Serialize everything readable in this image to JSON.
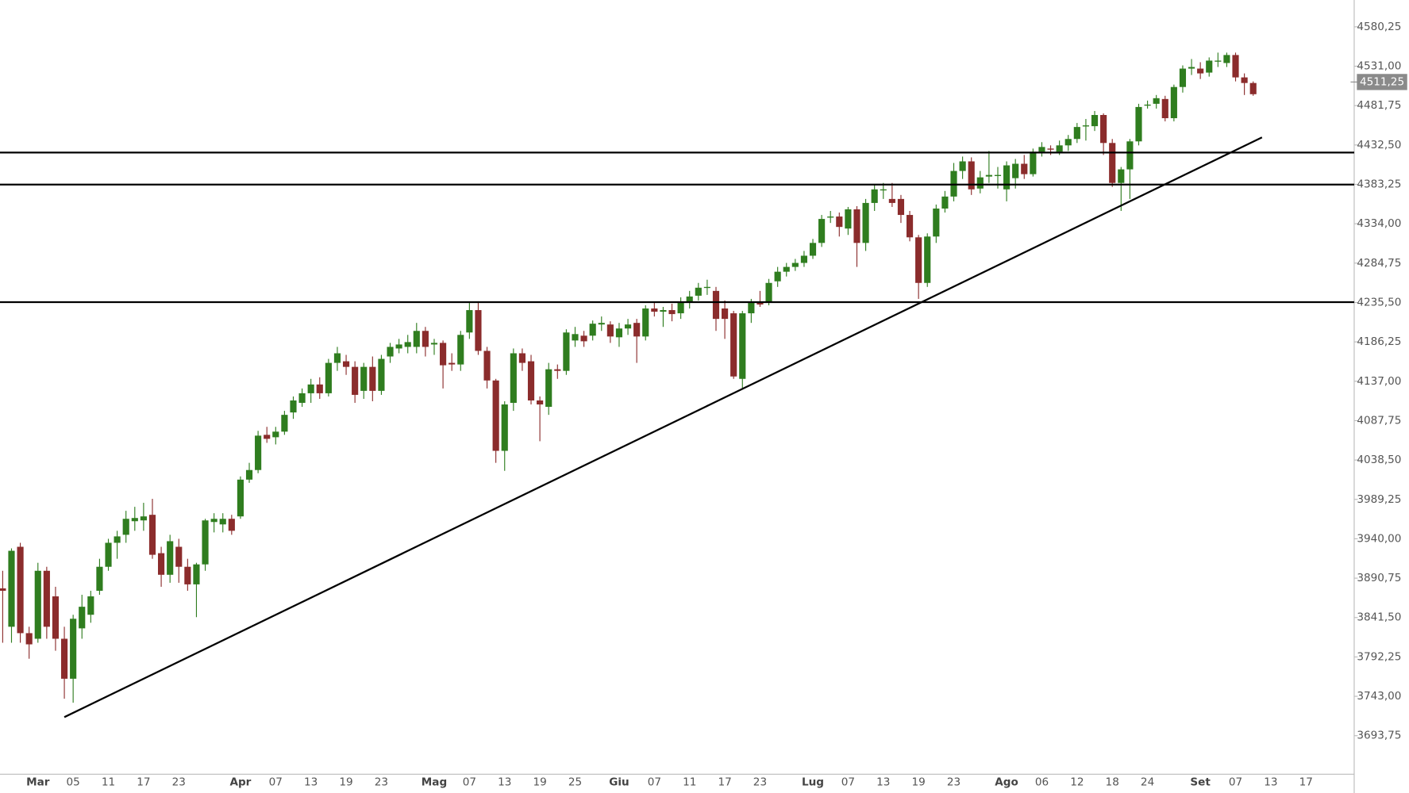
{
  "chart_data": {
    "type": "candlestick",
    "up_color": "#2f7d1f",
    "down_color": "#8b2c2c",
    "line_color": "#000000",
    "grid": false,
    "categories": [
      null,
      null,
      null,
      null,
      "Mar",
      null,
      null,
      null,
      "05",
      null,
      null,
      null,
      "11",
      null,
      null,
      null,
      "17",
      null,
      null,
      null,
      "23",
      null,
      null,
      null,
      null,
      null,
      null,
      "Apr",
      null,
      null,
      null,
      "07",
      null,
      null,
      null,
      "13",
      null,
      null,
      null,
      "19",
      null,
      null,
      null,
      "23",
      null,
      null,
      null,
      null,
      null,
      "Mag",
      null,
      null,
      null,
      "07",
      null,
      null,
      null,
      "13",
      null,
      null,
      null,
      "19",
      null,
      null,
      null,
      "25",
      null,
      null,
      null,
      null,
      "Giu",
      null,
      null,
      null,
      "07",
      null,
      null,
      null,
      "11",
      null,
      null,
      null,
      "17",
      null,
      null,
      null,
      "23",
      null,
      null,
      null,
      null,
      null,
      "Lug",
      null,
      null,
      null,
      "07",
      null,
      null,
      null,
      "13",
      null,
      null,
      null,
      "19",
      null,
      null,
      null,
      "23",
      null,
      null,
      null,
      null,
      null,
      "Ago",
      null,
      null,
      null,
      "06",
      null,
      null,
      null,
      "12",
      null,
      null,
      null,
      "18",
      null,
      null,
      null,
      "24",
      null,
      null,
      null,
      null,
      null,
      "Set",
      null,
      null,
      null,
      "07",
      null,
      null,
      null,
      "13",
      null,
      null,
      null,
      "17"
    ],
    "open": [
      3878,
      3830,
      3930,
      3822,
      3815,
      3900,
      3868,
      3815,
      3765,
      3828,
      3845,
      3875,
      3905,
      3935,
      3945,
      3962,
      3963,
      3970,
      3922,
      3895,
      3930,
      3905,
      3883,
      3908,
      3961,
      3958,
      3965,
      3968,
      4014,
      4026,
      4070,
      4067,
      4074,
      4098,
      4110,
      4122,
      4133,
      4122,
      4160,
      4162,
      4155,
      4125,
      4155,
      4125,
      4168,
      4178,
      4180,
      4180,
      4200,
      4183,
      4185,
      4160,
      4158,
      4198,
      4226,
      4175,
      4138,
      4050,
      4110,
      4172,
      4162,
      4113,
      4105,
      4152,
      4150,
      4188,
      4194,
      4194,
      4208,
      4208,
      4192,
      4203,
      4210,
      4193,
      4228,
      4224,
      4226,
      4222,
      4236,
      4244,
      4254,
      4250,
      4228,
      4222,
      4140,
      4222,
      4236,
      4236,
      4262,
      4274,
      4280,
      4285,
      4294,
      4310,
      4342,
      4343,
      4328,
      4352,
      4310,
      4360,
      4376,
      4365,
      4365,
      4345,
      4317,
      4260,
      4318,
      4353,
      4368,
      4400,
      4412,
      4378,
      4393,
      4394,
      4377,
      4391,
      4409,
      4396,
      4424,
      4428,
      4424,
      4432,
      4440,
      4456,
      4456,
      4470,
      4435,
      4385,
      4402,
      4437,
      4482,
      4484,
      4490,
      4466,
      4505,
      4528,
      4528,
      4523,
      4537,
      4535,
      4545,
      4517,
      4510,
      null,
      null,
      null,
      null,
      null,
      null
    ],
    "high": [
      3900,
      3928,
      3935,
      3830,
      3910,
      3905,
      3880,
      3830,
      3845,
      3870,
      3875,
      3915,
      3940,
      3950,
      3975,
      3980,
      3985,
      3990,
      3930,
      3945,
      3940,
      3915,
      3910,
      3965,
      3972,
      3972,
      3970,
      4018,
      4035,
      4075,
      4080,
      4080,
      4100,
      4118,
      4128,
      4140,
      4142,
      4165,
      4180,
      4170,
      4162,
      4160,
      4168,
      4170,
      4185,
      4190,
      4195,
      4210,
      4205,
      4190,
      4188,
      4172,
      4200,
      4235,
      4237,
      4180,
      4140,
      4112,
      4178,
      4178,
      4170,
      4118,
      4160,
      4158,
      4202,
      4205,
      4200,
      4213,
      4218,
      4212,
      4210,
      4215,
      4215,
      4232,
      4235,
      4230,
      4234,
      4242,
      4250,
      4260,
      4264,
      4255,
      4238,
      4225,
      4225,
      4240,
      4250,
      4265,
      4280,
      4285,
      4290,
      4300,
      4315,
      4345,
      4350,
      4348,
      4355,
      4356,
      4365,
      4383,
      4385,
      4385,
      4370,
      4350,
      4320,
      4322,
      4358,
      4375,
      4410,
      4418,
      4417,
      4400,
      4425,
      4405,
      4412,
      4415,
      4420,
      4428,
      4436,
      4432,
      4438,
      4445,
      4460,
      4465,
      4475,
      4472,
      4440,
      4405,
      4440,
      4484,
      4488,
      4495,
      4494,
      4508,
      4532,
      4540,
      4536,
      4542,
      4548,
      4548,
      4548,
      4522,
      4512,
      null,
      null,
      null,
      null,
      null,
      null
    ],
    "low": [
      3810,
      3810,
      3810,
      3790,
      3810,
      3815,
      3800,
      3740,
      3735,
      3815,
      3835,
      3870,
      3900,
      3915,
      3935,
      3950,
      3950,
      3915,
      3880,
      3885,
      3885,
      3875,
      3842,
      3900,
      3948,
      3948,
      3945,
      3965,
      4010,
      4022,
      4060,
      4058,
      4070,
      4090,
      4105,
      4110,
      4115,
      4118,
      4150,
      4145,
      4110,
      4115,
      4112,
      4120,
      4160,
      4172,
      4172,
      4172,
      4168,
      4170,
      4128,
      4150,
      4150,
      4190,
      4170,
      4128,
      4035,
      4025,
      4100,
      4150,
      4108,
      4062,
      4095,
      4140,
      4145,
      4180,
      4180,
      4188,
      4200,
      4185,
      4180,
      4195,
      4160,
      4188,
      4218,
      4205,
      4212,
      4215,
      4228,
      4238,
      4245,
      4200,
      4190,
      4140,
      4128,
      4210,
      4230,
      4232,
      4255,
      4268,
      4275,
      4280,
      4290,
      4305,
      4335,
      4318,
      4320,
      4280,
      4300,
      4350,
      4365,
      4355,
      4335,
      4312,
      4240,
      4255,
      4310,
      4348,
      4362,
      4390,
      4370,
      4372,
      4385,
      4378,
      4362,
      4378,
      4390,
      4393,
      4418,
      4420,
      4420,
      4425,
      4435,
      4438,
      4450,
      4420,
      4380,
      4350,
      4365,
      4432,
      4478,
      4478,
      4462,
      4462,
      4498,
      4520,
      4515,
      4518,
      4530,
      4530,
      4512,
      4495,
      4494,
      null,
      null,
      null,
      null,
      null,
      null
    ],
    "close": [
      3875,
      3925,
      3822,
      3808,
      3900,
      3830,
      3815,
      3765,
      3840,
      3855,
      3868,
      3905,
      3935,
      3943,
      3965,
      3966,
      3968,
      3920,
      3895,
      3937,
      3905,
      3883,
      3908,
      3963,
      3965,
      3965,
      3950,
      4014,
      4026,
      4069,
      4065,
      4074,
      4095,
      4113,
      4122,
      4133,
      4122,
      4160,
      4172,
      4155,
      4120,
      4155,
      4125,
      4165,
      4180,
      4183,
      4186,
      4200,
      4180,
      4185,
      4157,
      4158,
      4195,
      4226,
      4175,
      4138,
      4050,
      4108,
      4172,
      4160,
      4113,
      4108,
      4152,
      4150,
      4198,
      4196,
      4187,
      4209,
      4210,
      4193,
      4203,
      4208,
      4193,
      4228,
      4224,
      4226,
      4221,
      4236,
      4243,
      4254,
      4255,
      4215,
      4215,
      4143,
      4222,
      4236,
      4233,
      4260,
      4274,
      4280,
      4285,
      4294,
      4310,
      4340,
      4343,
      4330,
      4352,
      4310,
      4360,
      4377,
      4377,
      4360,
      4345,
      4317,
      4260,
      4318,
      4353,
      4368,
      4400,
      4412,
      4377,
      4392,
      4395,
      4395,
      4407,
      4409,
      4396,
      4424,
      4430,
      4427,
      4432,
      4440,
      4455,
      4457,
      4470,
      4435,
      4385,
      4402,
      4437,
      4480,
      4483,
      4491,
      4466,
      4505,
      4528,
      4530,
      4522,
      4538,
      4538,
      4545,
      4517,
      4510,
      4496,
      null,
      null,
      null,
      null,
      null,
      null
    ],
    "ylim": [
      3645.6,
      4613.8
    ],
    "yticks": [
      {
        "value": 4580.25,
        "label": "4580,25"
      },
      {
        "value": 4531,
        "label": "4531,00"
      },
      {
        "value": 4481.75,
        "label": "4481,75"
      },
      {
        "value": 4432.5,
        "label": "4432,50"
      },
      {
        "value": 4383.25,
        "label": "4383,25"
      },
      {
        "value": 4334,
        "label": "4334,00"
      },
      {
        "value": 4284.75,
        "label": "4284,75"
      },
      {
        "value": 4235.5,
        "label": "4235,50"
      },
      {
        "value": 4186.25,
        "label": "4186,25"
      },
      {
        "value": 4137,
        "label": "4137,00"
      },
      {
        "value": 4087.75,
        "label": "4087,75"
      },
      {
        "value": 4038.5,
        "label": "4038,50"
      },
      {
        "value": 3989.25,
        "label": "3989,25"
      },
      {
        "value": 3940,
        "label": "3940,00"
      },
      {
        "value": 3890.75,
        "label": "3890,75"
      },
      {
        "value": 3841.5,
        "label": "3841,50"
      },
      {
        "value": 3792.25,
        "label": "3792,25"
      },
      {
        "value": 3743,
        "label": "3743,00"
      },
      {
        "value": 3693.75,
        "label": "3693,75"
      }
    ],
    "last_price": {
      "value": 4511.25,
      "label": "4511,25"
    },
    "levels": [
      4423,
      4383,
      4236
    ],
    "trendline": {
      "x": [
        7,
        143
      ],
      "y": [
        3717,
        4442
      ]
    }
  }
}
